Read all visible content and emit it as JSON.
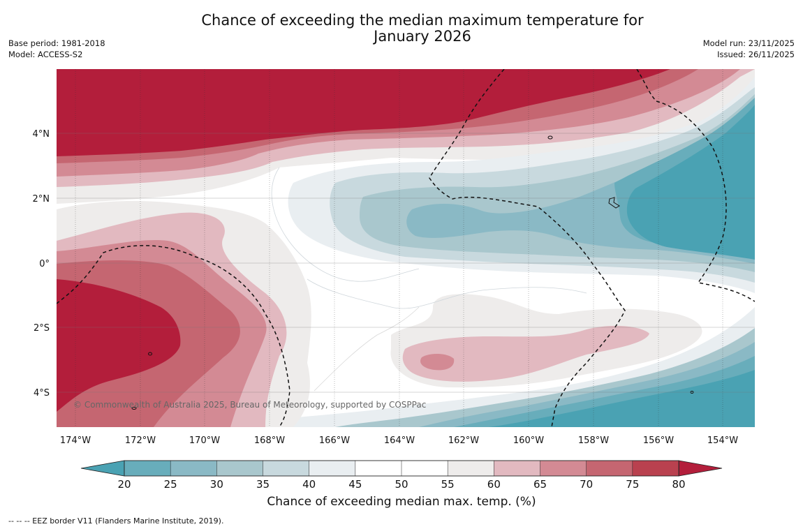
{
  "header": {
    "title_line1": "Chance of exceeding the median maximum temperature for",
    "title_line2": "January 2026",
    "base_period": "Base period: 1981-2018",
    "model": "Model: ACCESS-S2",
    "model_run": "Model run: 23/11/2025",
    "issued": "Issued: 26/11/2025"
  },
  "map": {
    "lon_labels": [
      "174°W",
      "172°W",
      "170°W",
      "168°W",
      "166°W",
      "164°W",
      "162°W",
      "160°W",
      "158°W",
      "156°W",
      "154°W"
    ],
    "lat_labels": [
      "4°N",
      "2°N",
      "0°",
      "2°S",
      "4°S"
    ],
    "copyright": "© Commonwealth of Australia 2025, Bureau of Meteorology, supported by COSPPac"
  },
  "colorbar": {
    "ticks": [
      "20",
      "25",
      "30",
      "35",
      "40",
      "45",
      "50",
      "55",
      "60",
      "65",
      "70",
      "75",
      "80"
    ],
    "colors": [
      "#68adbb",
      "#8ab9c5",
      "#a9c7cd",
      "#c8d9de",
      "#e9eef1",
      "#ffffff",
      "#ffffff",
      "#eeeceb",
      "#e2b9c0",
      "#d38a94",
      "#c56671",
      "#b9414f"
    ],
    "low_color": "#4aa2b3",
    "high_color": "#b31e3b",
    "title": "Chance of exceeding median max. temp. (%)"
  },
  "footnote": "--  --  -- EEZ border V11 (Flanders Marine Institute, 2019)."
}
